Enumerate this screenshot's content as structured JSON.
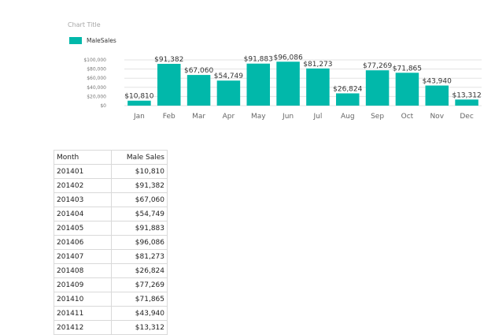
{
  "chart_data": {
    "type": "bar",
    "title": "Chart Title",
    "legend": {
      "entries": [
        "MaleSales"
      ],
      "placement": "top-left"
    },
    "categories": [
      "Jan",
      "Feb",
      "Mar",
      "Apr",
      "May",
      "Jun",
      "Jul",
      "Aug",
      "Sep",
      "Oct",
      "Nov",
      "Dec"
    ],
    "series": [
      {
        "name": "MaleSales",
        "color": "#01B8AA",
        "values": [
          10810,
          91382,
          67060,
          54749,
          91883,
          96086,
          81273,
          26824,
          77269,
          71865,
          43940,
          13312
        ],
        "labels": [
          "$10,810",
          "$91,382",
          "$67,060",
          "$54,749",
          "$91,883",
          "$96,086",
          "$81,273",
          "$26,824",
          "$77,269",
          "$71,865",
          "$43,940",
          "$13,312"
        ]
      }
    ],
    "yticks": [
      0,
      20000,
      40000,
      60000,
      80000,
      100000
    ],
    "ytick_labels": [
      "$0",
      "$20,000",
      "$40,000",
      "$60,000",
      "$80,000",
      "$100,000"
    ],
    "ylim": [
      0,
      100000
    ],
    "xlabel": "",
    "ylabel": "",
    "grid": true
  },
  "table": {
    "headers": [
      "Month",
      "Male Sales"
    ],
    "rows": [
      [
        "201401",
        "$10,810"
      ],
      [
        "201402",
        "$91,382"
      ],
      [
        "201403",
        "$67,060"
      ],
      [
        "201404",
        "$54,749"
      ],
      [
        "201405",
        "$91,883"
      ],
      [
        "201406",
        "$96,086"
      ],
      [
        "201407",
        "$81,273"
      ],
      [
        "201408",
        "$26,824"
      ],
      [
        "201409",
        "$77,269"
      ],
      [
        "201410",
        "$71,865"
      ],
      [
        "201411",
        "$43,940"
      ],
      [
        "201412",
        "$13,312"
      ]
    ]
  }
}
